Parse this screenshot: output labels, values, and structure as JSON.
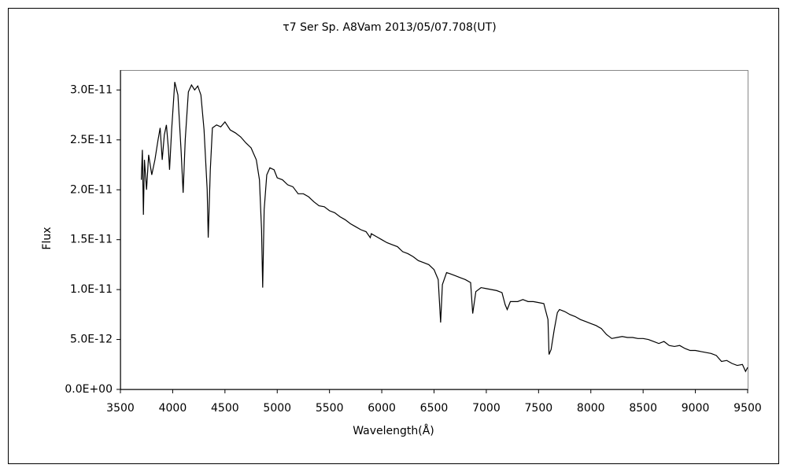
{
  "chart_data": {
    "type": "line",
    "title": "τ7 Ser    Sp. A8Vam    2013/05/07.708(UT)",
    "x_label": "Wavelength(Å)",
    "y_label": "Flux",
    "xlim": [
      3500,
      9500
    ],
    "xticks": [
      3500,
      4000,
      4500,
      5000,
      5500,
      6000,
      6500,
      7000,
      7500,
      8000,
      8500,
      9000,
      9500
    ],
    "ylim": [
      0,
      3.2e-11
    ],
    "yticks": [
      {
        "value": 0,
        "label": "0.0E+00"
      },
      {
        "value": 5e-12,
        "label": "5.0E-12"
      },
      {
        "value": 1e-11,
        "label": "1.0E-11"
      },
      {
        "value": 1.5e-11,
        "label": "1.5E-11"
      },
      {
        "value": 2e-11,
        "label": "2.0E-11"
      },
      {
        "value": 2.5e-11,
        "label": "2.5E-11"
      },
      {
        "value": 3e-11,
        "label": "3.0E-11"
      }
    ],
    "grid": false,
    "color": "#000000",
    "x": [
      3700,
      3710,
      3720,
      3730,
      3750,
      3770,
      3800,
      3830,
      3860,
      3880,
      3900,
      3920,
      3940,
      3960,
      3970,
      3990,
      4020,
      4050,
      4080,
      4100,
      4120,
      4150,
      4180,
      4210,
      4240,
      4270,
      4300,
      4330,
      4340,
      4360,
      4380,
      4420,
      4460,
      4500,
      4550,
      4600,
      4650,
      4700,
      4750,
      4800,
      4830,
      4850,
      4861,
      4875,
      4900,
      4930,
      4970,
      5000,
      5050,
      5100,
      5150,
      5200,
      5250,
      5300,
      5350,
      5400,
      5450,
      5500,
      5550,
      5600,
      5650,
      5700,
      5750,
      5800,
      5850,
      5890,
      5900,
      5950,
      6000,
      6050,
      6100,
      6150,
      6200,
      6250,
      6300,
      6350,
      6400,
      6450,
      6500,
      6540,
      6563,
      6580,
      6620,
      6650,
      6700,
      6750,
      6800,
      6850,
      6870,
      6900,
      6950,
      7000,
      7050,
      7100,
      7150,
      7180,
      7200,
      7230,
      7300,
      7350,
      7400,
      7450,
      7500,
      7550,
      7590,
      7600,
      7620,
      7650,
      7680,
      7700,
      7750,
      7800,
      7850,
      7900,
      7950,
      8000,
      8050,
      8100,
      8150,
      8200,
      8250,
      8300,
      8350,
      8400,
      8450,
      8500,
      8550,
      8600,
      8650,
      8700,
      8750,
      8800,
      8850,
      8900,
      8950,
      9000,
      9050,
      9100,
      9150,
      9200,
      9250,
      9300,
      9350,
      9400,
      9450,
      9480,
      9500
    ],
    "values": [
      2.1e-11,
      2.4e-11,
      1.75e-11,
      2.3e-11,
      2e-11,
      2.35e-11,
      2.15e-11,
      2.3e-11,
      2.5e-11,
      2.62e-11,
      2.3e-11,
      2.55e-11,
      2.65e-11,
      2.4e-11,
      2.2e-11,
      2.6e-11,
      3.08e-11,
      2.95e-11,
      2.4e-11,
      1.97e-11,
      2.5e-11,
      2.98e-11,
      3.05e-11,
      3e-11,
      3.04e-11,
      2.95e-11,
      2.6e-11,
      2e-11,
      1.52e-11,
      2.2e-11,
      2.62e-11,
      2.65e-11,
      2.63e-11,
      2.68e-11,
      2.6e-11,
      2.57e-11,
      2.53e-11,
      2.47e-11,
      2.42e-11,
      2.3e-11,
      2.1e-11,
      1.6e-11,
      1.02e-11,
      1.8e-11,
      2.15e-11,
      2.22e-11,
      2.2e-11,
      2.12e-11,
      2.1e-11,
      2.05e-11,
      2.03e-11,
      1.96e-11,
      1.96e-11,
      1.93e-11,
      1.88e-11,
      1.84e-11,
      1.83e-11,
      1.79e-11,
      1.77e-11,
      1.73e-11,
      1.7e-11,
      1.66e-11,
      1.63e-11,
      1.6e-11,
      1.58e-11,
      1.52e-11,
      1.56e-11,
      1.53e-11,
      1.5e-11,
      1.47e-11,
      1.45e-11,
      1.43e-11,
      1.38e-11,
      1.36e-11,
      1.33e-11,
      1.29e-11,
      1.27e-11,
      1.25e-11,
      1.2e-11,
      1.1e-11,
      6.7e-12,
      1.05e-11,
      1.17e-11,
      1.16e-11,
      1.14e-11,
      1.12e-11,
      1.1e-11,
      1.07e-11,
      7.6e-12,
      9.8e-12,
      1.02e-11,
      1.01e-11,
      1e-11,
      9.9e-12,
      9.7e-12,
      8.5e-12,
      8e-12,
      8.8e-12,
      8.8e-12,
      9e-12,
      8.8e-12,
      8.8e-12,
      8.7e-12,
      8.6e-12,
      7e-12,
      3.5e-12,
      4e-12,
      6e-12,
      7.7e-12,
      8e-12,
      7.8e-12,
      7.5e-12,
      7.3e-12,
      7e-12,
      6.8e-12,
      6.6e-12,
      6.4e-12,
      6.1e-12,
      5.5e-12,
      5.1e-12,
      5.2e-12,
      5.3e-12,
      5.2e-12,
      5.2e-12,
      5.1e-12,
      5.1e-12,
      5e-12,
      4.8e-12,
      4.6e-12,
      4.8e-12,
      4.4e-12,
      4.3e-12,
      4.4e-12,
      4.1e-12,
      3.9e-12,
      3.9e-12,
      3.8e-12,
      3.7e-12,
      3.6e-12,
      3.4e-12,
      2.8e-12,
      2.9e-12,
      2.6e-12,
      2.4e-12,
      2.5e-12,
      1.8e-12,
      2.2e-12
    ]
  }
}
